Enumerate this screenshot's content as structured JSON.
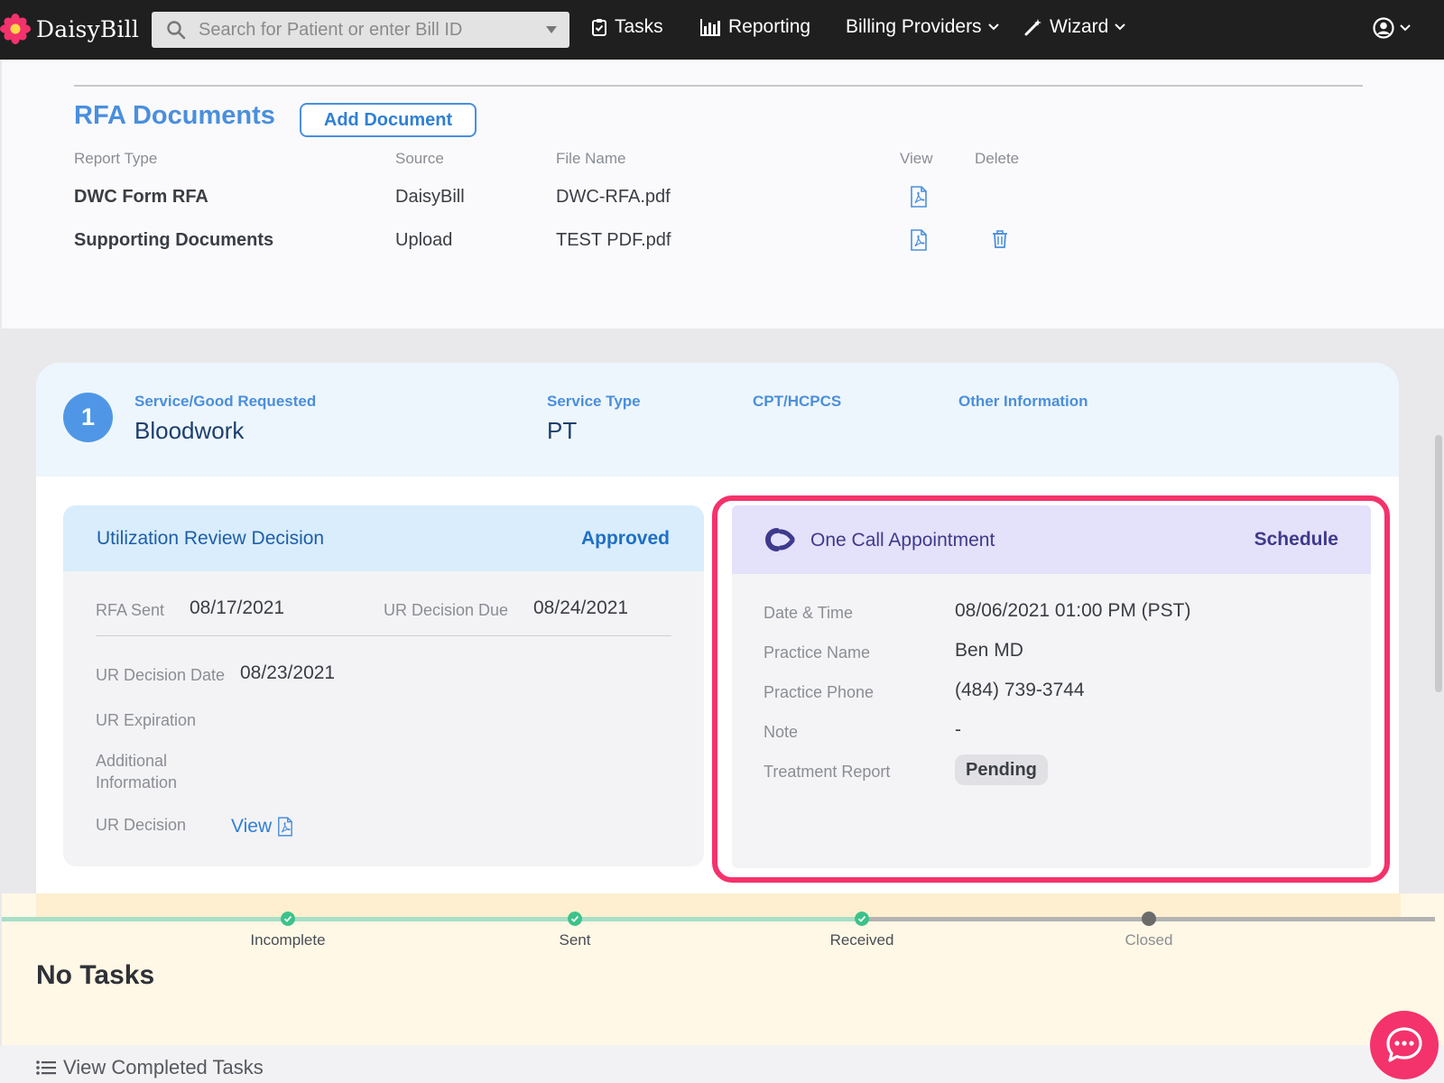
{
  "app": {
    "brand": "DaisyBill"
  },
  "nav": {
    "search_placeholder": "Search for Patient or enter Bill ID",
    "tasks": "Tasks",
    "reporting": "Reporting",
    "billing_providers": "Billing Providers",
    "wizard": "Wizard"
  },
  "rfa_documents": {
    "title": "RFA Documents",
    "add_button": "Add Document",
    "columns": [
      "Report Type",
      "Source",
      "File Name",
      "View",
      "Delete"
    ],
    "rows": [
      {
        "report_type": "DWC Form RFA",
        "source": "DaisyBill",
        "file_name": "DWC-RFA.pdf",
        "deletable": false
      },
      {
        "report_type": "Supporting Documents",
        "source": "Upload",
        "file_name": "TEST PDF.pdf",
        "deletable": true
      }
    ]
  },
  "service": {
    "number": "1",
    "service_label": "Service/Good Requested",
    "service_value": "Bloodwork",
    "type_label": "Service Type",
    "type_value": "PT",
    "cpt_label": "CPT/HCPCS",
    "other_label": "Other Information"
  },
  "ur": {
    "title": "Utilization Review Decision",
    "status": "Approved",
    "rfa_sent_label": "RFA Sent",
    "rfa_sent": "08/17/2021",
    "due_label": "UR Decision Due",
    "due": "08/24/2021",
    "decision_date_label": "UR Decision Date",
    "decision_date": "08/23/2021",
    "expiration_label": "UR Expiration",
    "additional_label": "Additional Information",
    "decision_label": "UR Decision",
    "view_link": "View"
  },
  "one_call": {
    "title": "One Call Appointment",
    "action": "Schedule",
    "date_label": "Date & Time",
    "date": "08/06/2021 01:00 PM (PST)",
    "practice_label": "Practice Name",
    "practice": "Ben MD",
    "phone_label": "Practice Phone",
    "phone": "(484) 739-3744",
    "note_label": "Note",
    "note": "-",
    "report_label": "Treatment Report",
    "report_status": "Pending",
    "highlight_color": "#f4326b"
  },
  "tasks": {
    "steps": [
      {
        "label": "Incomplete",
        "done": true
      },
      {
        "label": "Sent",
        "done": true
      },
      {
        "label": "Received",
        "done": true
      },
      {
        "label": "Closed",
        "done": false
      }
    ],
    "empty_text": "No Tasks",
    "view_completed": "View Completed Tasks"
  },
  "colors": {
    "accent": "#4a8fdc",
    "brand_pink": "#f4326b",
    "success": "#3cc28a"
  }
}
